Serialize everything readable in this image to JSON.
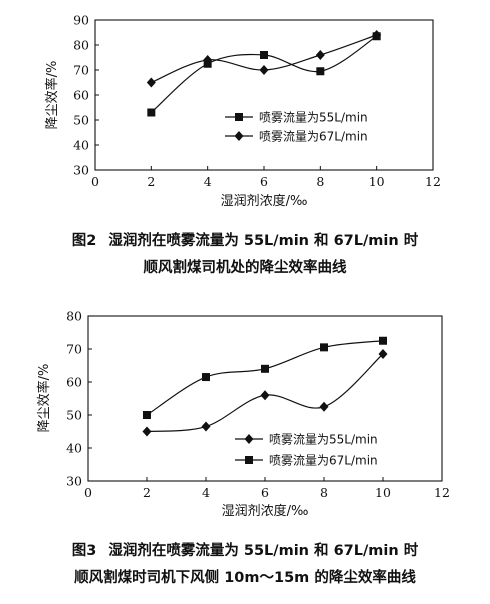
{
  "chart_data": [
    {
      "type": "line",
      "figure_number": "图2",
      "caption_lines": [
        "湿润剂在喷雾流量为 55L/min 和 67L/min 时",
        "顺风割煤司机处的降尘效率曲线"
      ],
      "xlabel": "湿润剂浓度/‰",
      "ylabel": "降尘效率/%",
      "xlim": [
        0,
        12
      ],
      "ylim": [
        30,
        90
      ],
      "xticks": [
        0,
        2,
        4,
        6,
        8,
        10,
        12
      ],
      "yticks": [
        30,
        40,
        50,
        60,
        70,
        80,
        90
      ],
      "grid": false,
      "legend_position": "center-right",
      "series": [
        {
          "name": "喷雾流量为55L/min",
          "marker": "square",
          "x": [
            2,
            4,
            6,
            8,
            10
          ],
          "values": [
            53,
            72.5,
            76,
            69.5,
            83.5
          ]
        },
        {
          "name": "喷雾流量为67L/min",
          "marker": "diamond",
          "x": [
            2,
            4,
            6,
            8,
            10
          ],
          "values": [
            65,
            74,
            70,
            76,
            84
          ]
        }
      ]
    },
    {
      "type": "line",
      "figure_number": "图3",
      "caption_lines": [
        "湿润剂在喷雾流量为 55L/min 和 67L/min 时",
        "顺风割煤时司机下风侧 10m～15m 的降尘效率曲线"
      ],
      "xlabel": "湿润剂浓度/‰",
      "ylabel": "降尘效率/%",
      "xlim": [
        0,
        12
      ],
      "ylim": [
        30,
        80
      ],
      "xticks": [
        0,
        2,
        4,
        6,
        8,
        10,
        12
      ],
      "yticks": [
        30,
        40,
        50,
        60,
        70,
        80
      ],
      "grid": false,
      "legend_position": "bottom-right",
      "series": [
        {
          "name": "喷雾流量为55L/min",
          "marker": "diamond",
          "x": [
            2,
            4,
            6,
            8,
            10
          ],
          "values": [
            45,
            46.5,
            56,
            52.5,
            68.5
          ]
        },
        {
          "name": "喷雾流量为67L/min",
          "marker": "square",
          "x": [
            2,
            4,
            6,
            8,
            10
          ],
          "values": [
            50,
            61.5,
            64,
            70.5,
            72.5
          ]
        }
      ]
    }
  ]
}
